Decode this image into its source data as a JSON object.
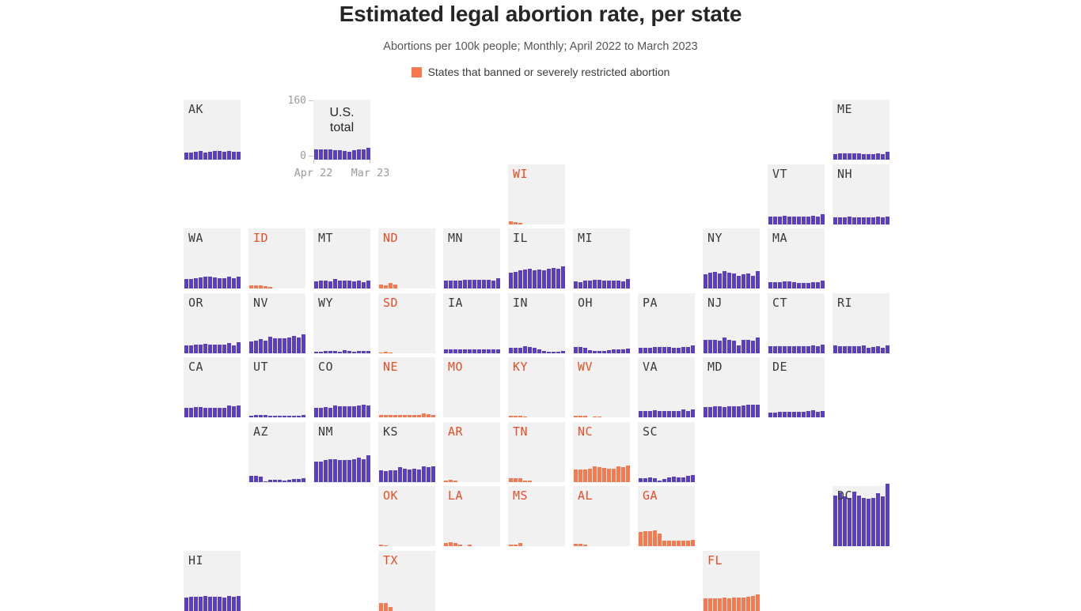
{
  "header": {
    "title": "Estimated legal abortion rate, per state",
    "subtitle": "Abortions per 100k people; Monthly; April 2022 to March 2023",
    "legend_label": "States that banned or severely restricted abortion"
  },
  "colors": {
    "bar_default": "#5a3ec4",
    "bar_banned": "#f8794f",
    "label_default": "#3a3a3a",
    "label_banned": "#e84e26",
    "tile_bg": "#f2f1f1",
    "axis_text": "#9a9a9a"
  },
  "chart_data": {
    "type": "bar",
    "layout": "small-multiples-state-tile-grid",
    "title": "Estimated legal abortion rate, per state",
    "subtitle": "Abortions per 100k people; Monthly; April 2022 to March 2023",
    "legend": [
      {
        "label": "States that banned or severely restricted abortion",
        "color": "#f8794f"
      }
    ],
    "x_axis": {
      "first_label": "Apr 22",
      "last_label": "Mar 23",
      "n_bars": 12,
      "unit": "month"
    },
    "y_axis": {
      "min": 0,
      "max": 160,
      "min_label": "0",
      "max_label": "160"
    },
    "us_total": {
      "label": "U.S. total",
      "values": [
        28,
        29,
        29,
        28,
        27,
        26,
        25,
        23,
        27,
        29,
        29,
        33
      ]
    },
    "states": [
      {
        "abbr": "AK",
        "row": 1,
        "col": 1,
        "banned": false,
        "values": [
          20,
          20,
          22,
          24,
          19,
          22,
          24,
          24,
          22,
          24,
          21,
          22
        ]
      },
      {
        "abbr": "ME",
        "row": 1,
        "col": 11,
        "banned": false,
        "values": [
          16,
          17,
          17,
          18,
          18,
          17,
          16,
          16,
          16,
          18,
          16,
          21
        ]
      },
      {
        "abbr": "WI",
        "row": 2,
        "col": 6,
        "banned": true,
        "values": [
          7,
          6,
          4,
          0,
          0,
          0,
          0,
          0,
          0,
          0,
          0,
          0
        ]
      },
      {
        "abbr": "VT",
        "row": 2,
        "col": 10,
        "banned": false,
        "values": [
          20,
          20,
          22,
          24,
          21,
          20,
          20,
          20,
          20,
          24,
          20,
          27
        ]
      },
      {
        "abbr": "NH",
        "row": 2,
        "col": 11,
        "banned": false,
        "values": [
          18,
          19,
          19,
          20,
          19,
          19,
          18,
          18,
          19,
          20,
          19,
          22
        ]
      },
      {
        "abbr": "WA",
        "row": 3,
        "col": 1,
        "banned": false,
        "values": [
          26,
          26,
          28,
          30,
          32,
          32,
          30,
          28,
          28,
          32,
          28,
          34
        ]
      },
      {
        "abbr": "ID",
        "row": 3,
        "col": 2,
        "banned": true,
        "values": [
          9,
          8,
          9,
          7,
          5,
          0,
          0,
          0,
          0,
          0,
          0,
          0
        ]
      },
      {
        "abbr": "MT",
        "row": 3,
        "col": 3,
        "banned": false,
        "values": [
          20,
          22,
          22,
          20,
          26,
          22,
          23,
          22,
          20,
          23,
          18,
          22
        ]
      },
      {
        "abbr": "ND",
        "row": 3,
        "col": 4,
        "banned": true,
        "values": [
          11,
          9,
          16,
          12,
          0,
          0,
          0,
          0,
          0,
          0,
          0,
          0
        ]
      },
      {
        "abbr": "MN",
        "row": 3,
        "col": 5,
        "banned": false,
        "values": [
          22,
          22,
          23,
          23,
          24,
          24,
          24,
          24,
          25,
          25,
          22,
          28
        ]
      },
      {
        "abbr": "IL",
        "row": 3,
        "col": 6,
        "banned": false,
        "values": [
          44,
          46,
          50,
          52,
          55,
          51,
          52,
          51,
          54,
          57,
          54,
          62
        ]
      },
      {
        "abbr": "MI",
        "row": 3,
        "col": 7,
        "banned": false,
        "values": [
          20,
          18,
          21,
          23,
          24,
          24,
          22,
          21,
          21,
          21,
          19,
          27
        ]
      },
      {
        "abbr": "NY",
        "row": 3,
        "col": 9,
        "banned": false,
        "values": [
          40,
          43,
          46,
          41,
          48,
          43,
          41,
          35,
          40,
          42,
          36,
          48
        ]
      },
      {
        "abbr": "MA",
        "row": 3,
        "col": 10,
        "banned": false,
        "values": [
          18,
          18,
          18,
          19,
          19,
          18,
          16,
          16,
          16,
          18,
          17,
          23
        ]
      },
      {
        "abbr": "OR",
        "row": 4,
        "col": 1,
        "banned": false,
        "values": [
          21,
          21,
          23,
          23,
          26,
          24,
          24,
          23,
          23,
          27,
          21,
          30
        ]
      },
      {
        "abbr": "NV",
        "row": 4,
        "col": 2,
        "banned": false,
        "values": [
          32,
          35,
          38,
          35,
          44,
          40,
          41,
          41,
          43,
          47,
          43,
          52
        ]
      },
      {
        "abbr": "WY",
        "row": 4,
        "col": 3,
        "banned": false,
        "values": [
          4,
          4,
          5,
          5,
          5,
          4,
          7,
          5,
          4,
          5,
          5,
          5
        ]
      },
      {
        "abbr": "SD",
        "row": 4,
        "col": 4,
        "banned": true,
        "values": [
          2,
          3,
          2,
          0,
          0,
          0,
          0,
          0,
          0,
          0,
          0,
          0
        ]
      },
      {
        "abbr": "IA",
        "row": 4,
        "col": 5,
        "banned": false,
        "values": [
          11,
          11,
          11,
          10,
          10,
          10,
          10,
          10,
          10,
          10,
          9,
          10
        ]
      },
      {
        "abbr": "IN",
        "row": 4,
        "col": 6,
        "banned": false,
        "values": [
          14,
          14,
          15,
          18,
          17,
          14,
          11,
          5,
          4,
          4,
          4,
          5
        ]
      },
      {
        "abbr": "OH",
        "row": 4,
        "col": 7,
        "banned": false,
        "values": [
          16,
          16,
          15,
          8,
          5,
          5,
          5,
          8,
          9,
          10,
          10,
          12
        ]
      },
      {
        "abbr": "PA",
        "row": 4,
        "col": 8,
        "banned": false,
        "values": [
          15,
          14,
          15,
          17,
          17,
          16,
          16,
          15,
          15,
          16,
          17,
          21
        ]
      },
      {
        "abbr": "NJ",
        "row": 4,
        "col": 9,
        "banned": false,
        "values": [
          36,
          36,
          37,
          35,
          42,
          37,
          35,
          20,
          36,
          37,
          35,
          43
        ]
      },
      {
        "abbr": "CT",
        "row": 4,
        "col": 10,
        "banned": false,
        "values": [
          18,
          18,
          19,
          19,
          19,
          19,
          18,
          18,
          18,
          22,
          19,
          24
        ]
      },
      {
        "abbr": "RI",
        "row": 4,
        "col": 11,
        "banned": false,
        "values": [
          20,
          18,
          19,
          18,
          18,
          19,
          20,
          15,
          16,
          18,
          15,
          20
        ]
      },
      {
        "abbr": "CA",
        "row": 5,
        "col": 1,
        "banned": false,
        "values": [
          27,
          27,
          28,
          28,
          27,
          26,
          26,
          26,
          26,
          33,
          31,
          34
        ]
      },
      {
        "abbr": "UT",
        "row": 5,
        "col": 2,
        "banned": false,
        "values": [
          5,
          6,
          7,
          6,
          5,
          5,
          5,
          5,
          4,
          5,
          5,
          6
        ]
      },
      {
        "abbr": "CO",
        "row": 5,
        "col": 3,
        "banned": false,
        "values": [
          26,
          27,
          29,
          27,
          33,
          30,
          31,
          30,
          30,
          32,
          36,
          33
        ]
      },
      {
        "abbr": "NE",
        "row": 5,
        "col": 4,
        "banned": true,
        "values": [
          6,
          6,
          6,
          6,
          7,
          7,
          6,
          6,
          6,
          10,
          9,
          7
        ]
      },
      {
        "abbr": "MO",
        "row": 5,
        "col": 5,
        "banned": true,
        "values": [
          0,
          0,
          0,
          0,
          0,
          0,
          0,
          0,
          0,
          0,
          0,
          0
        ]
      },
      {
        "abbr": "KY",
        "row": 5,
        "col": 6,
        "banned": true,
        "values": [
          4,
          4,
          4,
          3,
          0,
          0,
          0,
          0,
          0,
          0,
          0,
          0
        ]
      },
      {
        "abbr": "WV",
        "row": 5,
        "col": 7,
        "banned": true,
        "values": [
          4,
          4,
          5,
          0,
          2,
          2,
          0,
          0,
          0,
          0,
          0,
          0
        ]
      },
      {
        "abbr": "VA",
        "row": 5,
        "col": 8,
        "banned": false,
        "values": [
          17,
          17,
          18,
          20,
          17,
          17,
          17,
          18,
          17,
          22,
          18,
          23
        ]
      },
      {
        "abbr": "MD",
        "row": 5,
        "col": 9,
        "banned": false,
        "values": [
          29,
          29,
          30,
          30,
          29,
          30,
          31,
          31,
          32,
          36,
          36,
          36
        ]
      },
      {
        "abbr": "DE",
        "row": 5,
        "col": 10,
        "banned": false,
        "values": [
          13,
          14,
          15,
          16,
          15,
          15,
          15,
          16,
          17,
          19,
          15,
          17
        ]
      },
      {
        "abbr": "AZ",
        "row": 6,
        "col": 2,
        "banned": false,
        "values": [
          16,
          17,
          14,
          2,
          6,
          6,
          5,
          4,
          6,
          7,
          8,
          11
        ]
      },
      {
        "abbr": "NM",
        "row": 6,
        "col": 3,
        "banned": false,
        "values": [
          55,
          57,
          60,
          63,
          63,
          61,
          60,
          60,
          63,
          66,
          63,
          74
        ]
      },
      {
        "abbr": "KS",
        "row": 6,
        "col": 4,
        "banned": false,
        "values": [
          31,
          30,
          31,
          31,
          40,
          36,
          34,
          37,
          34,
          42,
          41,
          42
        ]
      },
      {
        "abbr": "AR",
        "row": 6,
        "col": 5,
        "banned": true,
        "values": [
          4,
          5,
          4,
          0,
          0,
          0,
          0,
          0,
          0,
          0,
          0,
          0
        ]
      },
      {
        "abbr": "TN",
        "row": 6,
        "col": 6,
        "banned": true,
        "values": [
          11,
          11,
          9,
          4,
          3,
          0,
          0,
          0,
          0,
          0,
          0,
          0
        ]
      },
      {
        "abbr": "NC",
        "row": 6,
        "col": 7,
        "banned": true,
        "values": [
          33,
          33,
          34,
          37,
          42,
          40,
          38,
          37,
          37,
          42,
          40,
          46
        ]
      },
      {
        "abbr": "SC",
        "row": 6,
        "col": 8,
        "banned": false,
        "values": [
          11,
          11,
          12,
          9,
          3,
          8,
          13,
          15,
          13,
          13,
          17,
          19
        ]
      },
      {
        "abbr": "OK",
        "row": 7,
        "col": 4,
        "banned": true,
        "values": [
          5,
          3,
          0,
          0,
          0,
          0,
          0,
          0,
          0,
          0,
          0,
          0
        ]
      },
      {
        "abbr": "LA",
        "row": 7,
        "col": 5,
        "banned": true,
        "values": [
          8,
          11,
          9,
          4,
          0,
          4,
          0,
          0,
          0,
          0,
          0,
          0
        ]
      },
      {
        "abbr": "MS",
        "row": 7,
        "col": 6,
        "banned": true,
        "values": [
          5,
          5,
          9,
          0,
          0,
          0,
          0,
          0,
          0,
          0,
          0,
          0
        ]
      },
      {
        "abbr": "AL",
        "row": 7,
        "col": 7,
        "banned": true,
        "values": [
          6,
          6,
          5,
          0,
          0,
          0,
          0,
          0,
          0,
          0,
          0,
          0
        ]
      },
      {
        "abbr": "GA",
        "row": 7,
        "col": 8,
        "banned": true,
        "values": [
          40,
          42,
          42,
          43,
          36,
          16,
          15,
          16,
          15,
          15,
          15,
          18
        ]
      },
      {
        "abbr": "DC",
        "row": 7,
        "col": 11,
        "banned": false,
        "values": [
          141,
          149,
          138,
          134,
          151,
          140,
          134,
          131,
          134,
          147,
          139,
          173
        ]
      },
      {
        "abbr": "HI",
        "row": 8,
        "col": 1,
        "banned": false,
        "values": [
          37,
          38,
          38,
          39,
          41,
          39,
          38,
          38,
          37,
          40,
          38,
          40
        ]
      },
      {
        "abbr": "TX",
        "row": 8,
        "col": 4,
        "banned": true,
        "values": [
          20,
          22,
          11,
          0,
          0,
          0,
          0,
          0,
          0,
          0,
          0,
          0
        ]
      },
      {
        "abbr": "FL",
        "row": 8,
        "col": 9,
        "banned": true,
        "values": [
          33,
          34,
          34,
          35,
          36,
          35,
          37,
          36,
          36,
          39,
          41,
          45
        ]
      }
    ]
  }
}
